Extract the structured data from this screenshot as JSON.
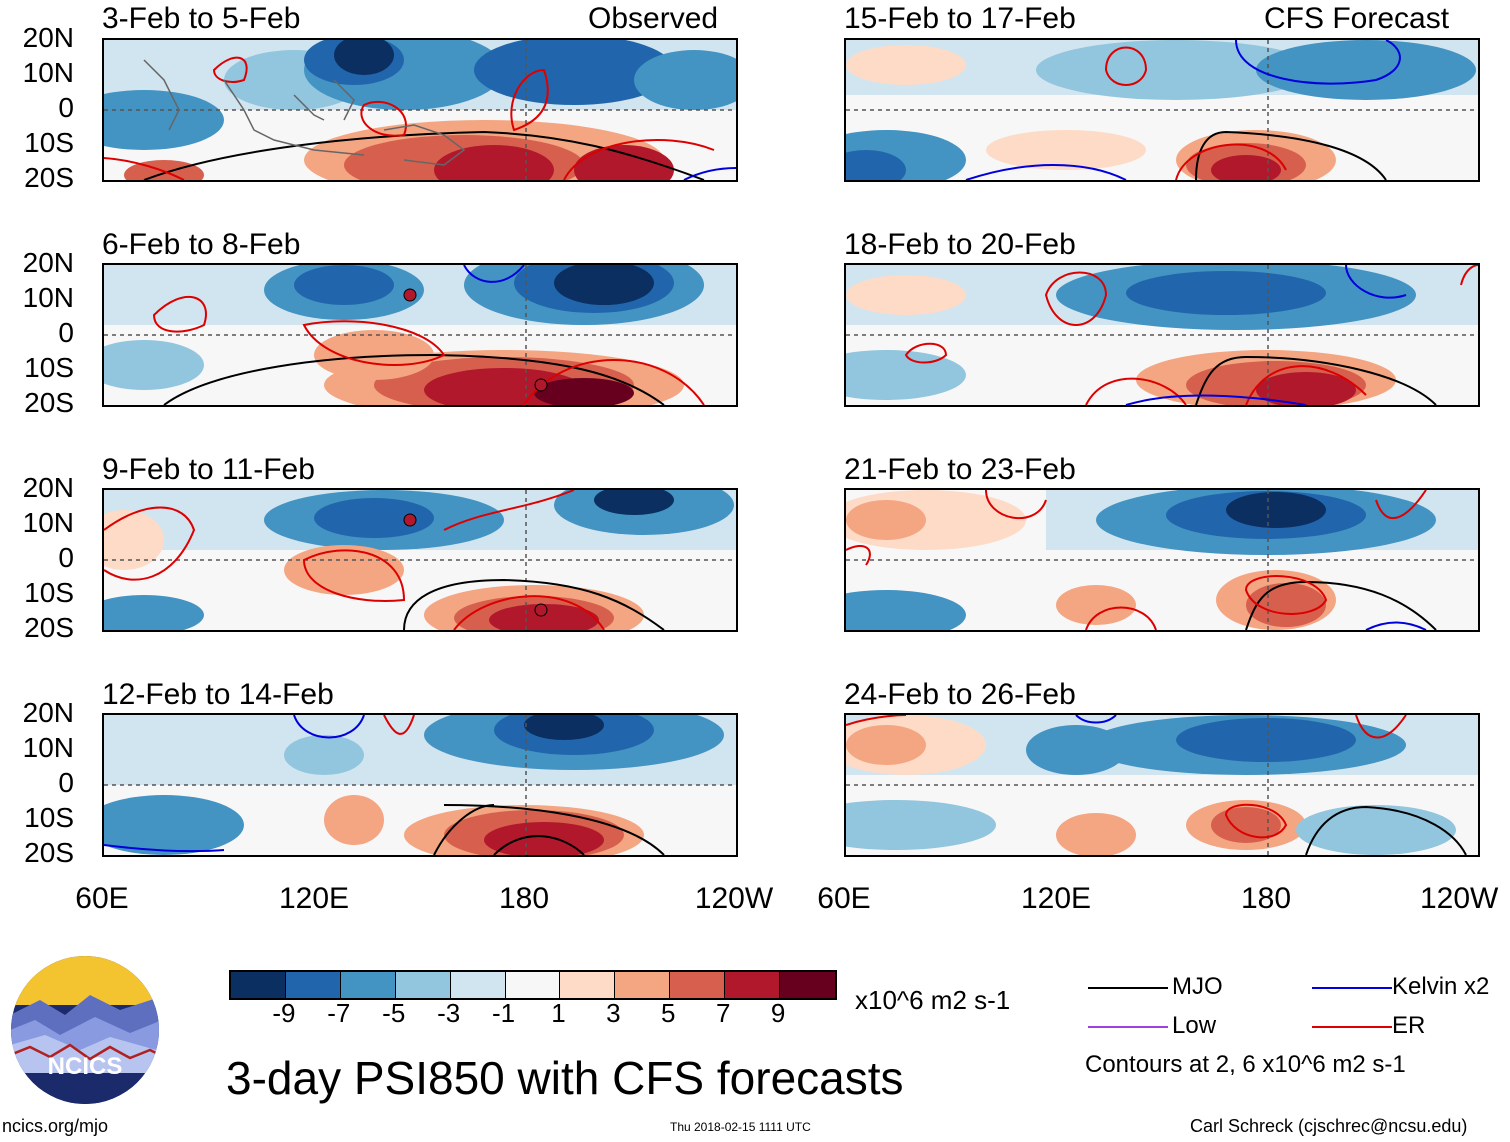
{
  "header": {
    "left_tag": "Observed",
    "right_tag": "CFS Forecast"
  },
  "panels": [
    {
      "title": "3-Feb to 5-Feb"
    },
    {
      "title": "6-Feb to 8-Feb"
    },
    {
      "title": "9-Feb to 11-Feb"
    },
    {
      "title": "12-Feb to 14-Feb"
    },
    {
      "title": "15-Feb to 17-Feb"
    },
    {
      "title": "18-Feb to 20-Feb"
    },
    {
      "title": "21-Feb to 23-Feb"
    },
    {
      "title": "24-Feb to 26-Feb"
    }
  ],
  "axes": {
    "y_ticks": [
      "20N",
      "10N",
      "0",
      "10S",
      "20S"
    ],
    "x_ticks": [
      "60E",
      "120E",
      "180",
      "120W"
    ]
  },
  "colorbar": {
    "unit": "x10^6 m2 s-1",
    "labels": [
      "-9",
      "-7",
      "-5",
      "-3",
      "-1",
      "1",
      "3",
      "5",
      "7",
      "9"
    ],
    "colors": [
      "#0b2f60",
      "#2166ac",
      "#4393c3",
      "#92c5de",
      "#d1e5f0",
      "#f7f7f7",
      "#fddbc7",
      "#f4a582",
      "#d6604d",
      "#b2182b",
      "#67001f"
    ]
  },
  "legend": {
    "items": [
      {
        "label": "MJO",
        "color": "#000000"
      },
      {
        "label": "Kelvin x2",
        "color": "#0000dd"
      },
      {
        "label": "Low",
        "color": "#a040e0"
      },
      {
        "label": "ER",
        "color": "#dd0000"
      }
    ],
    "note": "Contours at 2, 6 x10^6 m2 s-1"
  },
  "main_title": "3-day PSI850 with CFS forecasts",
  "logo": {
    "text": "NCICS"
  },
  "footer": {
    "left": "ncics.org/mjo",
    "center": "Thu 2018-02-15 1111 UTC",
    "right": "Carl Schreck (cjschrec@ncsu.edu)"
  }
}
